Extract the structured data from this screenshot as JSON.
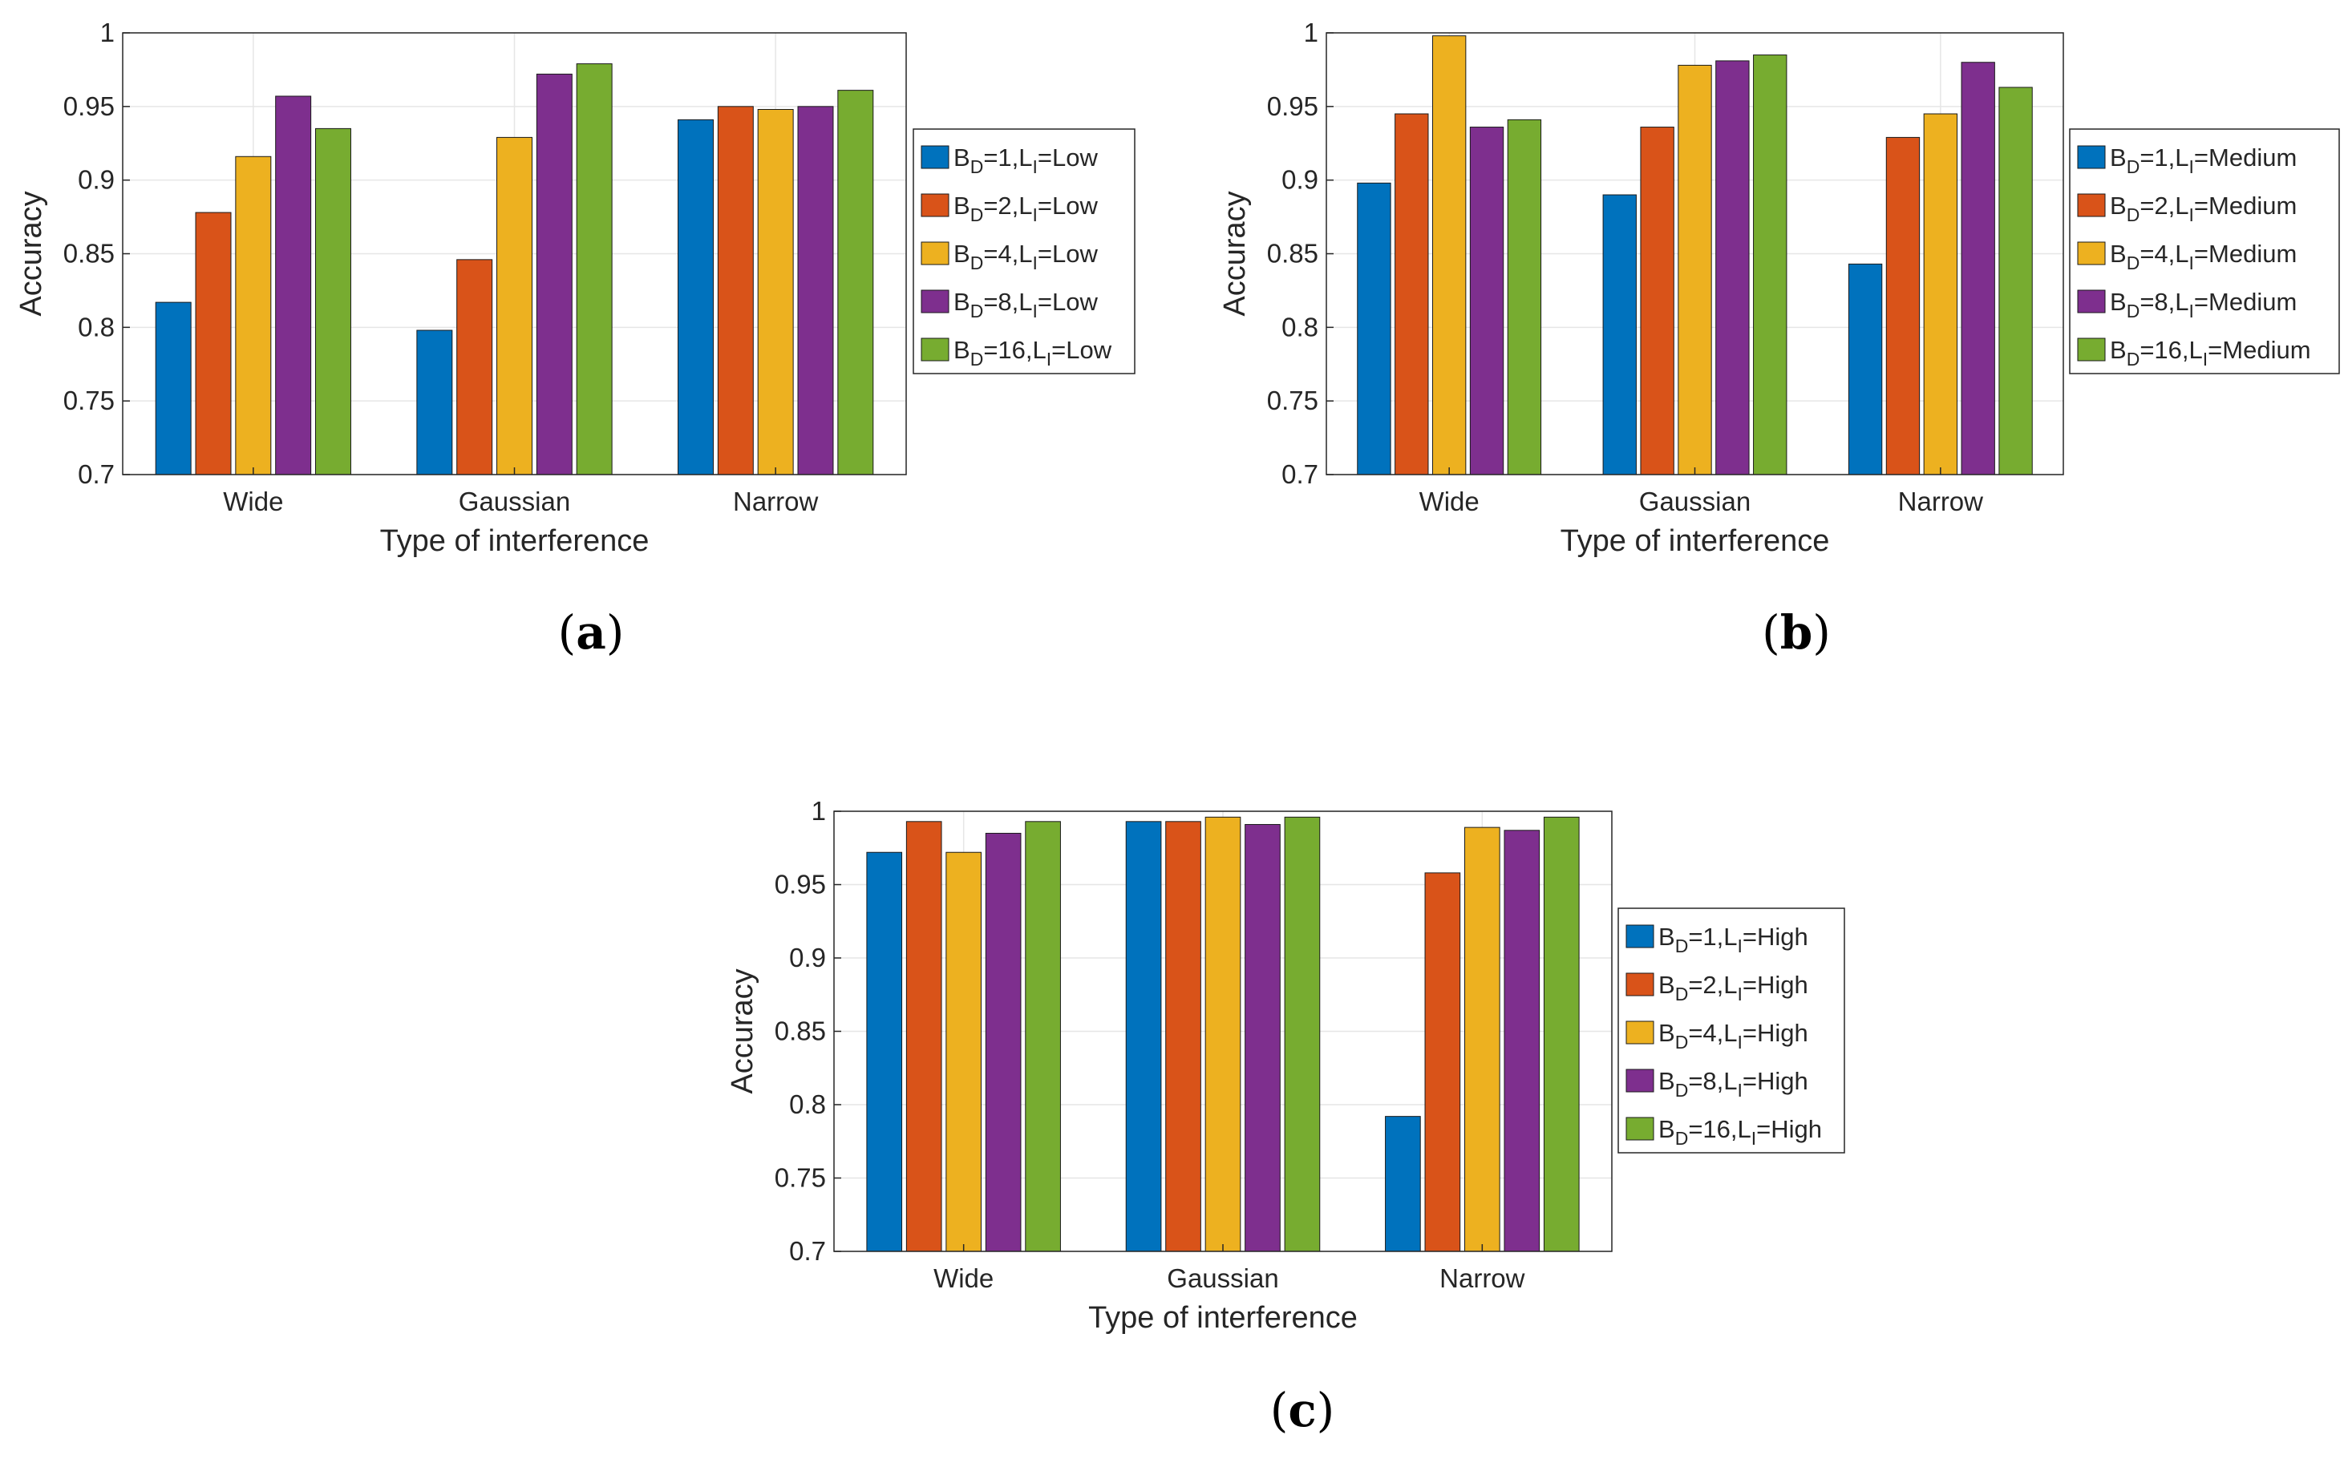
{
  "chart_data": [
    {
      "type": "bar",
      "panel_label": "a",
      "categories": [
        "Wide",
        "Gaussian",
        "Narrow"
      ],
      "xlabel": "Type of interference",
      "ylabel": "Accuracy",
      "ylim": [
        0.7,
        1.0
      ],
      "yticks": [
        "0.7",
        "0.75",
        "0.8",
        "0.85",
        "0.9",
        "0.95",
        "1"
      ],
      "grid": true,
      "legend_position": "right",
      "series": [
        {
          "name": "B_D=1,L_I=Low",
          "sub1": "D",
          "main": "=1,L",
          "sub2": "I",
          "tail": "=Low",
          "values": [
            0.817,
            0.798,
            0.941
          ]
        },
        {
          "name": "B_D=2,L_I=Low",
          "sub1": "D",
          "main": "=2,L",
          "sub2": "I",
          "tail": "=Low",
          "values": [
            0.878,
            0.846,
            0.95
          ]
        },
        {
          "name": "B_D=4,L_I=Low",
          "sub1": "D",
          "main": "=4,L",
          "sub2": "I",
          "tail": "=Low",
          "values": [
            0.916,
            0.929,
            0.948
          ]
        },
        {
          "name": "B_D=8,L_I=Low",
          "sub1": "D",
          "main": "=8,L",
          "sub2": "I",
          "tail": "=Low",
          "values": [
            0.957,
            0.972,
            0.95
          ]
        },
        {
          "name": "B_D=16,L_I=Low",
          "sub1": "D",
          "main": "=16,L",
          "sub2": "I",
          "tail": "=Low",
          "values": [
            0.935,
            0.979,
            0.961
          ]
        }
      ]
    },
    {
      "type": "bar",
      "panel_label": "b",
      "categories": [
        "Wide",
        "Gaussian",
        "Narrow"
      ],
      "xlabel": "Type of interference",
      "ylabel": "Accuracy",
      "ylim": [
        0.7,
        1.0
      ],
      "yticks": [
        "0.7",
        "0.75",
        "0.8",
        "0.85",
        "0.9",
        "0.95",
        "1"
      ],
      "grid": true,
      "legend_position": "right",
      "series": [
        {
          "name": "B_D=1,L_I=Medium",
          "sub1": "D",
          "main": "=1,L",
          "sub2": "I",
          "tail": "=Medium",
          "values": [
            0.898,
            0.89,
            0.843
          ]
        },
        {
          "name": "B_D=2,L_I=Medium",
          "sub1": "D",
          "main": "=2,L",
          "sub2": "I",
          "tail": "=Medium",
          "values": [
            0.945,
            0.936,
            0.929
          ]
        },
        {
          "name": "B_D=4,L_I=Medium",
          "sub1": "D",
          "main": "=4,L",
          "sub2": "I",
          "tail": "=Medium",
          "values": [
            0.998,
            0.978,
            0.945
          ]
        },
        {
          "name": "B_D=8,L_I=Medium",
          "sub1": "D",
          "main": "=8,L",
          "sub2": "I",
          "tail": "=Medium",
          "values": [
            0.936,
            0.981,
            0.98
          ]
        },
        {
          "name": "B_D=16,L_I=Medium",
          "sub1": "D",
          "main": "=16,L",
          "sub2": "I",
          "tail": "=Medium",
          "values": [
            0.941,
            0.985,
            0.963
          ]
        }
      ]
    },
    {
      "type": "bar",
      "panel_label": "c",
      "categories": [
        "Wide",
        "Gaussian",
        "Narrow"
      ],
      "xlabel": "Type of interference",
      "ylabel": "Accuracy",
      "ylim": [
        0.7,
        1.0
      ],
      "yticks": [
        "0.7",
        "0.75",
        "0.8",
        "0.85",
        "0.9",
        "0.95",
        "1"
      ],
      "grid": true,
      "legend_position": "right",
      "series": [
        {
          "name": "B_D=1,L_I=High",
          "sub1": "D",
          "main": "=1,L",
          "sub2": "I",
          "tail": "=High",
          "values": [
            0.972,
            0.993,
            0.792
          ]
        },
        {
          "name": "B_D=2,L_I=High",
          "sub1": "D",
          "main": "=2,L",
          "sub2": "I",
          "tail": "=High",
          "values": [
            0.993,
            0.993,
            0.958
          ]
        },
        {
          "name": "B_D=4,L_I=High",
          "sub1": "D",
          "main": "=4,L",
          "sub2": "I",
          "tail": "=High",
          "values": [
            0.972,
            0.996,
            0.989
          ]
        },
        {
          "name": "B_D=8,L_I=High",
          "sub1": "D",
          "main": "=8,L",
          "sub2": "I",
          "tail": "=High",
          "values": [
            0.985,
            0.991,
            0.987
          ]
        },
        {
          "name": "B_D=16,L_I=High",
          "sub1": "D",
          "main": "=16,L",
          "sub2": "I",
          "tail": "=High",
          "values": [
            0.993,
            0.996,
            0.996
          ]
        }
      ]
    }
  ],
  "colors": {
    "series": [
      "#0072BD",
      "#D95319",
      "#EDB120",
      "#7E2F8E",
      "#77AC30"
    ],
    "axis": "#262626",
    "grid": "#e6e6e6"
  }
}
